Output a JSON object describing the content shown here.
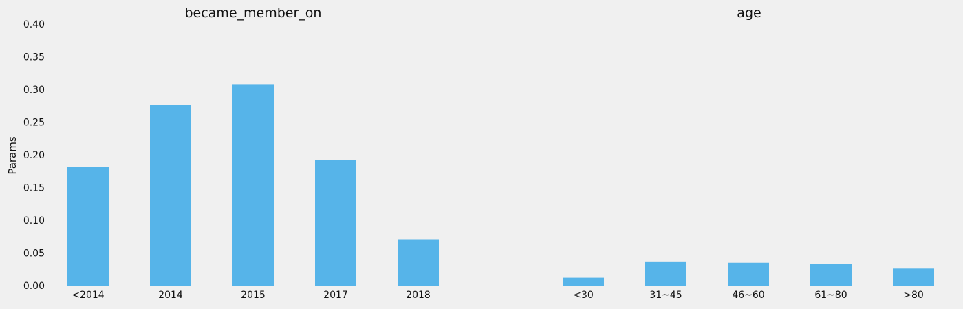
{
  "chart_data": {
    "type": "bar",
    "ylabel": "Params",
    "ylim": [
      0,
      0.4
    ],
    "yticks": [
      "0.00",
      "0.05",
      "0.10",
      "0.15",
      "0.20",
      "0.25",
      "0.30",
      "0.35",
      "0.40"
    ],
    "grid": false,
    "bar_color": "#56b4e9",
    "background": "#f0f0f0",
    "panels": [
      {
        "title": "became_member_on",
        "categories": [
          "<2014",
          "2014",
          "2015",
          "2017",
          "2018"
        ],
        "values": [
          0.182,
          0.276,
          0.308,
          0.192,
          0.07
        ]
      },
      {
        "title": "age",
        "categories": [
          "<30",
          "31~45",
          "46~60",
          "61~80",
          ">80"
        ],
        "values": [
          0.012,
          0.037,
          0.035,
          0.033,
          0.026
        ]
      }
    ]
  }
}
